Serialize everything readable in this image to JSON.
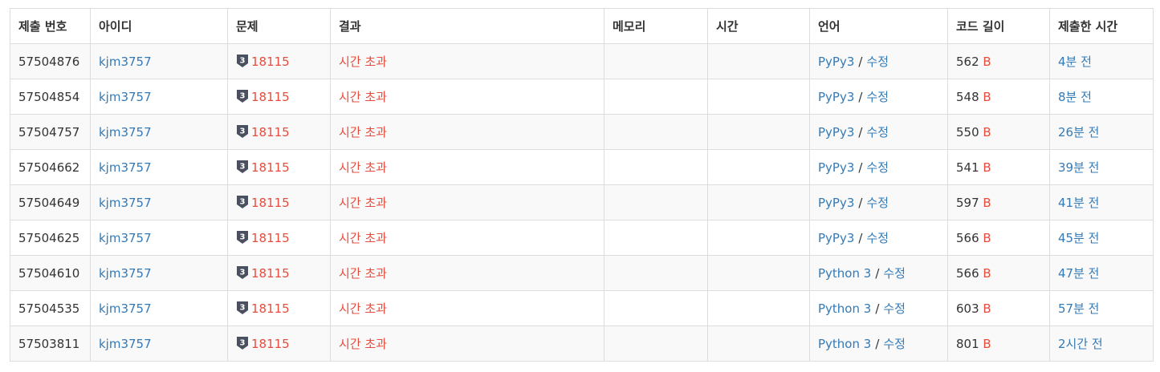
{
  "columns": [
    "제출 번호",
    "아이디",
    "문제",
    "결과",
    "메모리",
    "시간",
    "언어",
    "코드 길이",
    "제출한 시간"
  ],
  "colors": {
    "link": "#337ab7",
    "result_tle": "#e74c3c",
    "tier_badge": "#4a5060"
  },
  "tier_icon": "tier-3-badge-icon",
  "separator": "/",
  "byte_unit": "B",
  "rows": [
    {
      "submission_id": "57504876",
      "user": "kjm3757",
      "tier": "3",
      "problem": "18115",
      "result": "시간 초과",
      "memory": "",
      "time": "",
      "language": "PyPy3",
      "edit": "수정",
      "code_length": "562",
      "submitted": "4분 전"
    },
    {
      "submission_id": "57504854",
      "user": "kjm3757",
      "tier": "3",
      "problem": "18115",
      "result": "시간 초과",
      "memory": "",
      "time": "",
      "language": "PyPy3",
      "edit": "수정",
      "code_length": "548",
      "submitted": "8분 전"
    },
    {
      "submission_id": "57504757",
      "user": "kjm3757",
      "tier": "3",
      "problem": "18115",
      "result": "시간 초과",
      "memory": "",
      "time": "",
      "language": "PyPy3",
      "edit": "수정",
      "code_length": "550",
      "submitted": "26분 전"
    },
    {
      "submission_id": "57504662",
      "user": "kjm3757",
      "tier": "3",
      "problem": "18115",
      "result": "시간 초과",
      "memory": "",
      "time": "",
      "language": "PyPy3",
      "edit": "수정",
      "code_length": "541",
      "submitted": "39분 전"
    },
    {
      "submission_id": "57504649",
      "user": "kjm3757",
      "tier": "3",
      "problem": "18115",
      "result": "시간 초과",
      "memory": "",
      "time": "",
      "language": "PyPy3",
      "edit": "수정",
      "code_length": "597",
      "submitted": "41분 전"
    },
    {
      "submission_id": "57504625",
      "user": "kjm3757",
      "tier": "3",
      "problem": "18115",
      "result": "시간 초과",
      "memory": "",
      "time": "",
      "language": "PyPy3",
      "edit": "수정",
      "code_length": "566",
      "submitted": "45분 전"
    },
    {
      "submission_id": "57504610",
      "user": "kjm3757",
      "tier": "3",
      "problem": "18115",
      "result": "시간 초과",
      "memory": "",
      "time": "",
      "language": "Python 3",
      "edit": "수정",
      "code_length": "566",
      "submitted": "47분 전"
    },
    {
      "submission_id": "57504535",
      "user": "kjm3757",
      "tier": "3",
      "problem": "18115",
      "result": "시간 초과",
      "memory": "",
      "time": "",
      "language": "Python 3",
      "edit": "수정",
      "code_length": "603",
      "submitted": "57분 전"
    },
    {
      "submission_id": "57503811",
      "user": "kjm3757",
      "tier": "3",
      "problem": "18115",
      "result": "시간 초과",
      "memory": "",
      "time": "",
      "language": "Python 3",
      "edit": "수정",
      "code_length": "801",
      "submitted": "2시간 전"
    }
  ]
}
